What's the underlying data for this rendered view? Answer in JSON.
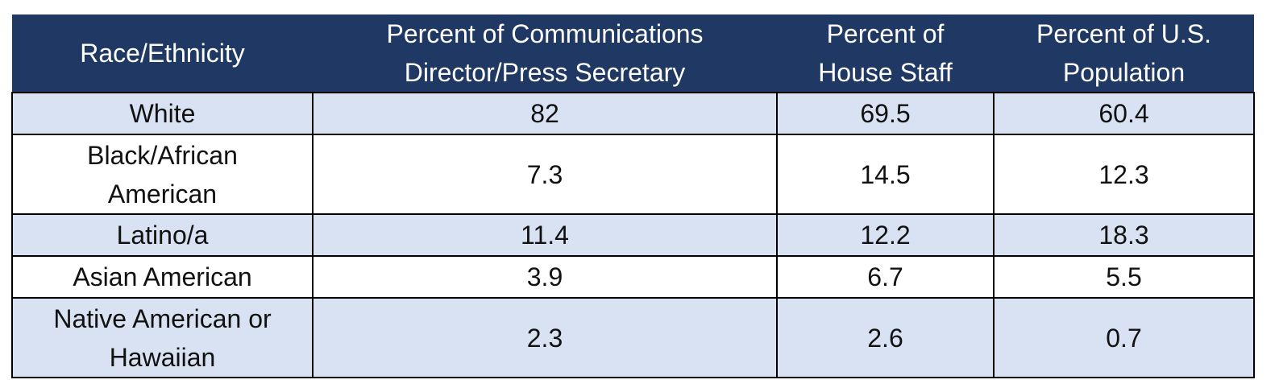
{
  "table": {
    "header": [
      "Race/Ethnicity",
      "Percent of Communications Director/Press Secretary",
      "Percent of House Staff",
      "Percent of U.S. Population"
    ],
    "rows": [
      [
        "White",
        "82",
        "69.5",
        "60.4"
      ],
      [
        "Black/African American",
        "7.3",
        "14.5",
        "12.3"
      ],
      [
        "Latino/a",
        "11.4",
        "12.2",
        "18.3"
      ],
      [
        "Asian American",
        "3.9",
        "6.7",
        "5.5"
      ],
      [
        "Native American or Hawaiian",
        "2.3",
        "2.6",
        "0.7"
      ]
    ]
  }
}
